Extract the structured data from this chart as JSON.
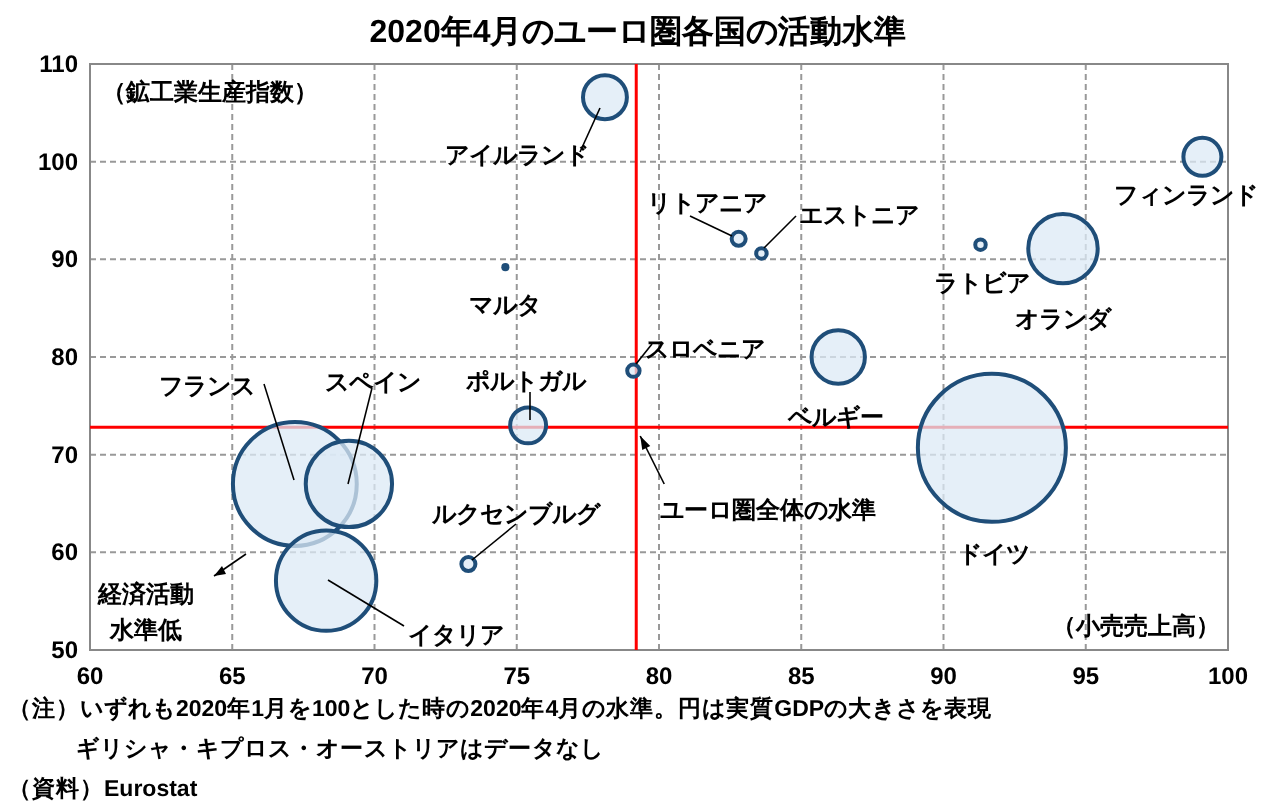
{
  "chart_data": {
    "type": "bubble",
    "title": "2020年4月のユーロ圏各国の活動水準",
    "xlabel": "（小売売上高）",
    "ylabel": "（鉱工業生産指数）",
    "xlim": [
      60,
      100
    ],
    "xticks": [
      60,
      65,
      70,
      75,
      80,
      85,
      90,
      95,
      100
    ],
    "ylim": [
      50,
      110
    ],
    "yticks": [
      50,
      60,
      70,
      80,
      90,
      100,
      110
    ],
    "grid": true,
    "series": [
      {
        "name": "アイルランド",
        "color": "#1f4e79",
        "x": [
          78.1
        ],
        "values": [
          106.6
        ],
        "sizes": [
          0.088
        ]
      },
      {
        "name": "フィンランド",
        "color": "#1f4e79",
        "x": [
          99.1
        ],
        "values": [
          100.5
        ],
        "sizes": [
          0.066
        ]
      },
      {
        "name": "リトアニア",
        "color": "#1f4e79",
        "x": [
          82.8
        ],
        "values": [
          92.1
        ],
        "sizes": [
          0.009
        ]
      },
      {
        "name": "エストニア",
        "color": "#1f4e79",
        "x": [
          83.6
        ],
        "values": [
          90.6
        ],
        "sizes": [
          0.005
        ]
      },
      {
        "name": "ラトビア",
        "color": "#1f4e79",
        "x": [
          91.3
        ],
        "values": [
          91.5
        ],
        "sizes": [
          0.005
        ]
      },
      {
        "name": "オランダ",
        "color": "#1f4e79",
        "x": [
          94.2
        ],
        "values": [
          91.1
        ],
        "sizes": [
          0.22
        ]
      },
      {
        "name": "マルタ",
        "color": "#1f4e79",
        "x": [
          74.6
        ],
        "values": [
          89.2
        ],
        "sizes": [
          0.003
        ]
      },
      {
        "name": "スロベニア",
        "color": "#1f4e79",
        "x": [
          79.1
        ],
        "values": [
          78.6
        ],
        "sizes": [
          0.007
        ]
      },
      {
        "name": "ベルギー",
        "color": "#1f4e79",
        "x": [
          86.3
        ],
        "values": [
          80.0
        ],
        "sizes": [
          0.13
        ]
      },
      {
        "name": "ドイツ",
        "color": "#1f4e79",
        "x": [
          91.7
        ],
        "values": [
          70.7
        ],
        "sizes": [
          1
        ]
      },
      {
        "name": "ポルトガル",
        "color": "#1f4e79",
        "x": [
          75.4
        ],
        "values": [
          73.0
        ],
        "sizes": [
          0.059
        ]
      },
      {
        "name": "フランス",
        "color": "#1f4e79",
        "x": [
          67.2
        ],
        "values": [
          67.0
        ],
        "sizes": [
          0.7
        ]
      },
      {
        "name": "スペイン",
        "color": "#1f4e79",
        "x": [
          69.1
        ],
        "values": [
          67.0
        ],
        "sizes": [
          0.34
        ]
      },
      {
        "name": "イタリア",
        "color": "#1f4e79",
        "x": [
          68.3
        ],
        "values": [
          57.1
        ],
        "sizes": [
          0.46
        ]
      },
      {
        "name": "ルクセンブルグ",
        "color": "#1f4e79",
        "x": [
          73.3
        ],
        "values": [
          58.8
        ],
        "sizes": [
          0.009
        ]
      }
    ],
    "ref_lines": [
      {
        "axis": "x",
        "value": 79.2,
        "label": "ユーロ圏全体の水準",
        "color": "#ff0000"
      },
      {
        "axis": "y",
        "value": 72.8,
        "color": "#ff0000"
      }
    ],
    "annotations": [
      "経済活動水準低",
      "（注）いずれも2020年1月を100とした時の2020年4月の水準。円は実質GDPの大きさを表現",
      "ギリシャ・キプロス・オーストリアはデータなし",
      "（資料）Eurostat"
    ]
  }
}
